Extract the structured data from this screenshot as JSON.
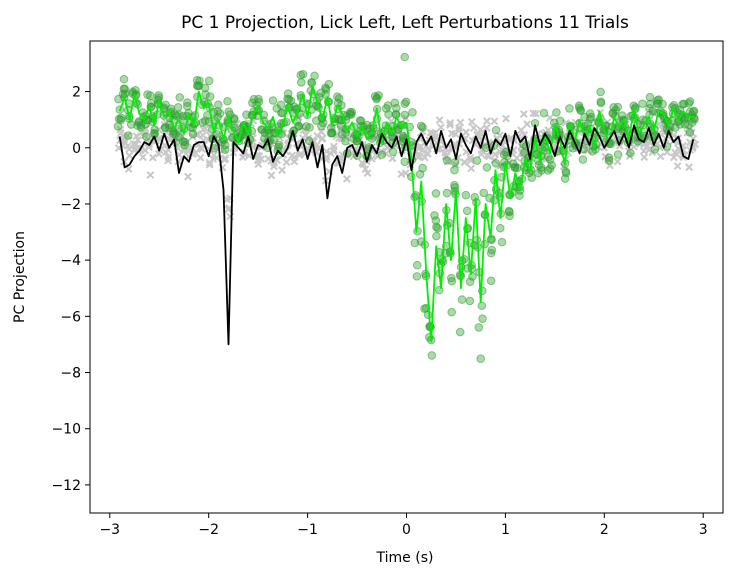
{
  "chart_data": {
    "type": "scatter",
    "title": "PC 1 Projection, Lick Left, Left Perturbations 11 Trials",
    "xlabel": "Time (s)",
    "ylabel": "PC Projection",
    "xlim": [
      -3.2,
      3.2
    ],
    "ylim": [
      -13,
      3.8
    ],
    "xticks": [
      -3,
      -2,
      -1,
      0,
      1,
      2,
      3
    ],
    "xtick_labels": [
      "−3",
      "−2",
      "−1",
      "0",
      "1",
      "2",
      "3"
    ],
    "yticks": [
      -12,
      -10,
      -8,
      -6,
      -4,
      -2,
      0,
      2
    ],
    "ytick_labels": [
      "−12",
      "−10",
      "−8",
      "−6",
      "−4",
      "−2",
      "0",
      "2"
    ],
    "grid": false,
    "legend": "none",
    "colors": {
      "green_markers": "#2ca02c",
      "gray_markers": "#c8c8c8",
      "green_line": "#00ee00",
      "black_line": "#000000"
    },
    "series": [
      {
        "kind": "line",
        "color": "#00ee00",
        "x": [
          -2.9,
          -2.85,
          -2.8,
          -2.75,
          -2.7,
          -2.65,
          -2.6,
          -2.55,
          -2.5,
          -2.45,
          -2.4,
          -2.35,
          -2.3,
          -2.25,
          -2.2,
          -2.15,
          -2.1,
          -2.05,
          -2.0,
          -1.95,
          -1.9,
          -1.85,
          -1.8,
          -1.75,
          -1.7,
          -1.65,
          -1.6,
          -1.55,
          -1.5,
          -1.45,
          -1.4,
          -1.35,
          -1.3,
          -1.25,
          -1.2,
          -1.15,
          -1.1,
          -1.05,
          -1.0,
          -0.95,
          -0.9,
          -0.85,
          -0.8,
          -0.75,
          -0.7,
          -0.65,
          -0.6,
          -0.55,
          -0.5,
          -0.45,
          -0.4,
          -0.35,
          -0.3,
          -0.25,
          -0.2,
          -0.15,
          -0.1,
          -0.05,
          0.0,
          0.05,
          0.1,
          0.15,
          0.2,
          0.25,
          0.3,
          0.35,
          0.4,
          0.45,
          0.5,
          0.55,
          0.6,
          0.65,
          0.7,
          0.75,
          0.8,
          0.85,
          0.9,
          0.95,
          1.0,
          1.05,
          1.1,
          1.15,
          1.2,
          1.25,
          1.3,
          1.35,
          1.4,
          1.45,
          1.5,
          1.55,
          1.6,
          1.65,
          1.7,
          1.75,
          1.8,
          1.85,
          1.9,
          1.95,
          2.0,
          2.05,
          2.1,
          2.15,
          2.2,
          2.25,
          2.3,
          2.35,
          2.4,
          2.45,
          2.5,
          2.55,
          2.6,
          2.65,
          2.7,
          2.75,
          2.8,
          2.85,
          2.9
        ],
        "y": [
          1.3,
          1.8,
          1.0,
          1.9,
          1.2,
          1.0,
          1.5,
          0.8,
          1.7,
          1.1,
          1.3,
          0.7,
          1.0,
          0.5,
          1.2,
          0.8,
          2.0,
          1.4,
          1.6,
          0.6,
          1.0,
          0.3,
          1.1,
          0.6,
          0.2,
          0.9,
          0.5,
          1.2,
          1.5,
          0.9,
          0.7,
          1.1,
          0.4,
          0.8,
          1.5,
          0.9,
          1.3,
          1.9,
          1.1,
          2.2,
          1.6,
          1.0,
          1.8,
          0.8,
          1.5,
          1.2,
          0.6,
          0.9,
          0.4,
          0.8,
          0.3,
          0.6,
          1.4,
          0.2,
          0.9,
          0.5,
          1.1,
          0.7,
          0.9,
          -0.4,
          -3.0,
          -1.2,
          -4.5,
          -6.9,
          -3.5,
          -5.0,
          -2.0,
          -4.0,
          -1.5,
          -5.0,
          -2.5,
          -4.5,
          -1.8,
          -5.5,
          -2.0,
          -3.2,
          -0.8,
          -2.5,
          -0.5,
          -1.8,
          -0.9,
          -1.5,
          -0.4,
          -0.8,
          0.3,
          -0.5,
          0.5,
          -0.2,
          0.8,
          0.3,
          -0.6,
          0.9,
          0.2,
          1.0,
          0.4,
          0.8,
          0.0,
          1.3,
          0.6,
          0.2,
          1.1,
          0.7,
          1.0,
          0.3,
          1.4,
          0.5,
          0.8,
          1.1,
          0.6,
          1.3,
          1.2,
          0.8,
          1.4,
          1.0,
          1.3,
          1.1,
          1.1
        ]
      },
      {
        "kind": "line",
        "color": "#000000",
        "x": [
          -2.9,
          -2.85,
          -2.8,
          -2.75,
          -2.7,
          -2.65,
          -2.6,
          -2.55,
          -2.5,
          -2.45,
          -2.4,
          -2.35,
          -2.3,
          -2.25,
          -2.2,
          -2.15,
          -2.1,
          -2.05,
          -2.0,
          -1.95,
          -1.9,
          -1.85,
          -1.8,
          -1.75,
          -1.7,
          -1.65,
          -1.6,
          -1.55,
          -1.5,
          -1.45,
          -1.4,
          -1.35,
          -1.3,
          -1.25,
          -1.2,
          -1.15,
          -1.1,
          -1.05,
          -1.0,
          -0.95,
          -0.9,
          -0.85,
          -0.8,
          -0.75,
          -0.7,
          -0.65,
          -0.6,
          -0.55,
          -0.5,
          -0.45,
          -0.4,
          -0.35,
          -0.3,
          -0.25,
          -0.2,
          -0.15,
          -0.1,
          -0.05,
          0.0,
          0.05,
          0.1,
          0.15,
          0.2,
          0.25,
          0.3,
          0.35,
          0.4,
          0.45,
          0.5,
          0.55,
          0.6,
          0.65,
          0.7,
          0.75,
          0.8,
          0.85,
          0.9,
          0.95,
          1.0,
          1.05,
          1.1,
          1.15,
          1.2,
          1.25,
          1.3,
          1.35,
          1.4,
          1.45,
          1.5,
          1.55,
          1.6,
          1.65,
          1.7,
          1.75,
          1.8,
          1.85,
          1.9,
          1.95,
          2.0,
          2.05,
          2.1,
          2.15,
          2.2,
          2.25,
          2.3,
          2.35,
          2.4,
          2.45,
          2.5,
          2.55,
          2.6,
          2.65,
          2.7,
          2.75,
          2.8,
          2.85,
          2.9
        ],
        "y": [
          0.4,
          -0.7,
          -0.6,
          -0.3,
          -0.1,
          0.2,
          0.1,
          0.4,
          -0.1,
          0.5,
          0.0,
          0.3,
          -0.9,
          -0.3,
          -0.5,
          0.1,
          0.2,
          0.2,
          -0.3,
          0.4,
          0.1,
          -1.5,
          -7.0,
          0.2,
          0.0,
          -0.2,
          0.4,
          -0.4,
          0.1,
          0.0,
          0.3,
          -0.5,
          -0.1,
          -0.3,
          0.0,
          0.6,
          -0.1,
          0.3,
          -0.4,
          0.2,
          -0.7,
          0.1,
          -1.8,
          -0.6,
          -0.3,
          -0.9,
          0.0,
          0.1,
          -0.3,
          0.2,
          -0.5,
          0.1,
          -0.2,
          0.5,
          0.2,
          0.0,
          0.4,
          -0.3,
          0.3,
          -0.8,
          0.2,
          0.5,
          0.1,
          0.4,
          -0.2,
          0.6,
          0.0,
          0.3,
          -0.4,
          0.5,
          0.1,
          -0.2,
          0.4,
          0.0,
          0.6,
          -0.2,
          0.3,
          0.1,
          0.5,
          -0.3,
          0.6,
          0.2,
          0.4,
          -0.4,
          0.8,
          0.1,
          0.5,
          0.2,
          -0.3,
          0.4,
          0.0,
          0.6,
          0.2,
          -0.2,
          0.5,
          0.1,
          0.7,
          0.4,
          0.0,
          0.3,
          0.6,
          0.1,
          0.5,
          0.0,
          0.8,
          0.3,
          0.2,
          0.7,
          0.1,
          0.5,
          0.0,
          0.6,
          0.2,
          0.4,
          -0.3,
          -0.4,
          0.3
        ]
      }
    ]
  }
}
